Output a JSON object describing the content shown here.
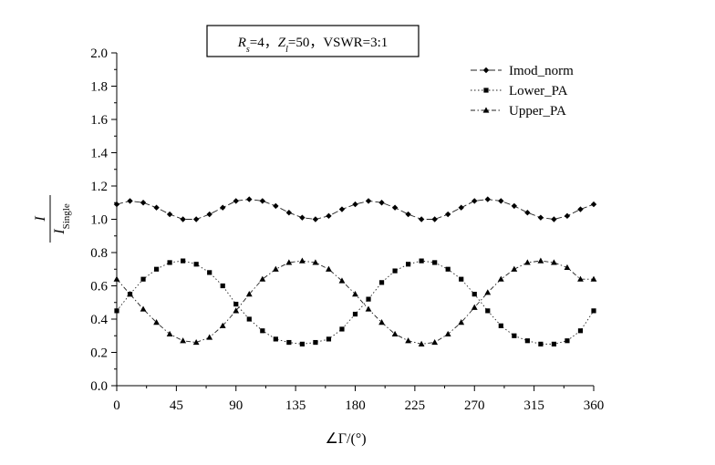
{
  "chart_data": {
    "type": "line",
    "annotation": {
      "parts": [
        {
          "text": "R",
          "italic": true,
          "sub": false
        },
        {
          "text": "s",
          "italic": true,
          "sub": true
        },
        {
          "text": "=4，",
          "italic": false,
          "sub": false
        },
        {
          "text": "Z",
          "italic": true,
          "sub": false
        },
        {
          "text": "l",
          "italic": true,
          "sub": true
        },
        {
          "text": "=50，VSWR=3:1",
          "italic": false,
          "sub": false
        }
      ]
    },
    "xlabel": "∠Γ/(°)",
    "ylabel": {
      "numerator": "I",
      "denominator": "I",
      "denominator_sub": "Single"
    },
    "xlim": [
      0,
      360
    ],
    "ylim": [
      0,
      2.0
    ],
    "x_ticks": [
      "0",
      "45",
      "90",
      "135",
      "180",
      "225",
      "270",
      "315",
      "360"
    ],
    "y_ticks": [
      "0.0",
      "0.2",
      "0.4",
      "0.6",
      "0.8",
      "1.0",
      "1.2",
      "1.4",
      "1.6",
      "1.8",
      "2.0"
    ],
    "legend_position": "top-right",
    "series": [
      {
        "name": "Imod_norm",
        "marker": "diamond",
        "line": "dash",
        "x": [
          0,
          10,
          20,
          30,
          40,
          50,
          60,
          70,
          80,
          90,
          100,
          110,
          120,
          130,
          140,
          150,
          160,
          170,
          180,
          190,
          200,
          210,
          220,
          230,
          240,
          250,
          260,
          270,
          280,
          290,
          300,
          310,
          320,
          330,
          340,
          350,
          360
        ],
        "values": [
          1.09,
          1.11,
          1.1,
          1.07,
          1.03,
          1.0,
          1.0,
          1.03,
          1.07,
          1.11,
          1.12,
          1.11,
          1.08,
          1.04,
          1.01,
          1.0,
          1.02,
          1.06,
          1.09,
          1.11,
          1.1,
          1.07,
          1.03,
          1.0,
          1.0,
          1.03,
          1.07,
          1.11,
          1.12,
          1.11,
          1.08,
          1.04,
          1.01,
          1.0,
          1.02,
          1.06,
          1.09
        ]
      },
      {
        "name": "Lower_PA",
        "marker": "square",
        "line": "dot",
        "x": [
          0,
          10,
          20,
          30,
          40,
          50,
          60,
          70,
          80,
          90,
          100,
          110,
          120,
          130,
          140,
          150,
          160,
          170,
          180,
          190,
          200,
          210,
          220,
          230,
          240,
          250,
          260,
          270,
          280,
          290,
          300,
          310,
          320,
          330,
          340,
          350,
          360
        ],
        "values": [
          0.45,
          0.55,
          0.64,
          0.7,
          0.74,
          0.75,
          0.73,
          0.68,
          0.6,
          0.49,
          0.4,
          0.33,
          0.28,
          0.26,
          0.25,
          0.26,
          0.28,
          0.34,
          0.43,
          0.52,
          0.62,
          0.69,
          0.73,
          0.75,
          0.74,
          0.7,
          0.64,
          0.55,
          0.45,
          0.36,
          0.3,
          0.27,
          0.25,
          0.25,
          0.27,
          0.33,
          0.45
        ]
      },
      {
        "name": "Upper_PA",
        "marker": "triangle",
        "line": "dashdot",
        "x": [
          0,
          10,
          20,
          30,
          40,
          50,
          60,
          70,
          80,
          90,
          100,
          110,
          120,
          130,
          140,
          150,
          160,
          170,
          180,
          190,
          200,
          210,
          220,
          230,
          240,
          250,
          260,
          270,
          280,
          290,
          300,
          310,
          320,
          330,
          340,
          350,
          360
        ],
        "values": [
          0.64,
          0.55,
          0.46,
          0.38,
          0.31,
          0.27,
          0.26,
          0.29,
          0.36,
          0.45,
          0.55,
          0.64,
          0.7,
          0.74,
          0.75,
          0.74,
          0.7,
          0.63,
          0.55,
          0.46,
          0.38,
          0.31,
          0.27,
          0.25,
          0.26,
          0.31,
          0.38,
          0.47,
          0.56,
          0.64,
          0.7,
          0.74,
          0.75,
          0.74,
          0.71,
          0.64,
          0.64
        ]
      }
    ]
  }
}
